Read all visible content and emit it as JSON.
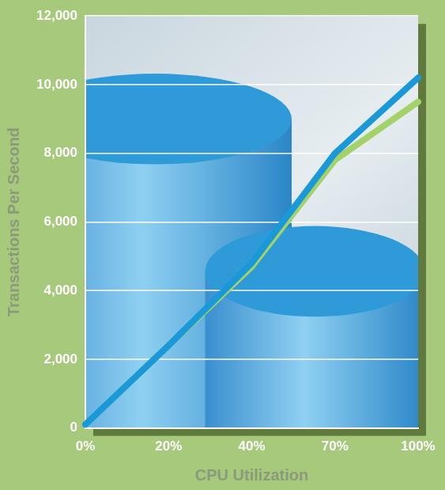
{
  "chart_data": {
    "type": "line",
    "x_label": "CPU Utilization",
    "y_label": "Transactions Per Second",
    "categories": [
      "0%",
      "20%",
      "40%",
      "70%",
      "100%"
    ],
    "series": [
      {
        "color": "#1b98d8",
        "values": [
          100,
          2400,
          4800,
          8000,
          10200
        ]
      },
      {
        "color": "#a3d16a",
        "values": [
          100,
          2400,
          4700,
          7800,
          9500
        ]
      }
    ],
    "ylim": [
      0,
      12000
    ],
    "yticks": [
      0,
      {
        "value": 2000,
        "label": "2,000"
      },
      {
        "value": 4000,
        "label": "4,000"
      },
      {
        "value": 6000,
        "label": "6,000"
      },
      {
        "value": 8000,
        "label": "8,000"
      },
      {
        "value": 10000,
        "label": "10,000"
      },
      {
        "value": 12000,
        "label": "12,000"
      }
    ],
    "grid": true
  }
}
